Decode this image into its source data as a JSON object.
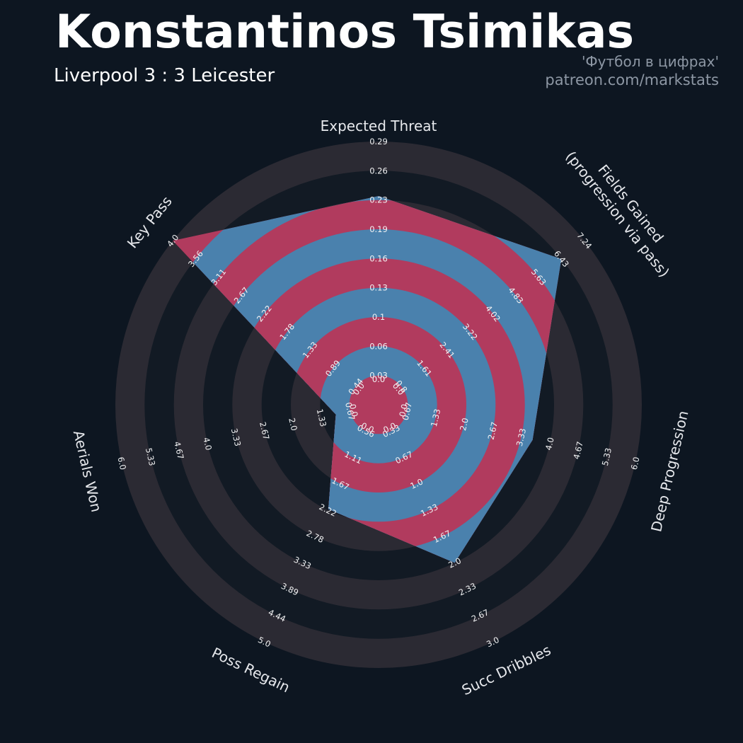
{
  "header": {
    "title": "Konstantinos Tsimikas",
    "subtitle": "Liverpool 3 : 3 Leicester",
    "credit_line1": "'Футбол в цифрах'",
    "credit_line2": "patreon.com/markstats"
  },
  "chart_data": {
    "type": "radar",
    "bands": 9,
    "legend_position": "none",
    "grid": "concentric-rings",
    "axes": [
      {
        "label": "Expected Threat",
        "value": 0.23,
        "max": 0.29,
        "tick_labels": [
          "0.0",
          "0.03",
          "0.06",
          "0.1",
          "0.13",
          "0.16",
          "0.19",
          "0.23",
          "0.26",
          "0.29"
        ]
      },
      {
        "label": "Fields Gained\n(progression via pass)",
        "value": 6.43,
        "max": 7.24,
        "tick_labels": [
          "0.0",
          "0.8",
          "1.61",
          "2.41",
          "3.22",
          "4.02",
          "4.83",
          "5.63",
          "6.43",
          "7.24"
        ]
      },
      {
        "label": "Deep Progression",
        "value": 3.6,
        "max": 6.0,
        "tick_labels": [
          "0.0",
          "0.67",
          "1.33",
          "2.0",
          "2.67",
          "3.33",
          "4.0",
          "4.67",
          "5.33",
          "6.0"
        ]
      },
      {
        "label": "Succ Dribbles",
        "value": 2.0,
        "max": 3.0,
        "tick_labels": [
          "0.0",
          "0.33",
          "0.67",
          "1.0",
          "1.33",
          "1.67",
          "2.0",
          "2.33",
          "2.67",
          "3.0"
        ]
      },
      {
        "label": "Poss Regain",
        "value": 2.2,
        "max": 5.0,
        "tick_labels": [
          "0.0",
          "0.56",
          "1.11",
          "1.67",
          "2.22",
          "2.78",
          "3.33",
          "3.89",
          "4.44",
          "5.0"
        ]
      },
      {
        "label": "Aerials Won",
        "value": 1.0,
        "max": 6.0,
        "tick_labels": [
          "0.0",
          "0.67",
          "1.33",
          "2.0",
          "2.67",
          "3.33",
          "4.0",
          "4.67",
          "5.33",
          "6.0"
        ]
      },
      {
        "label": "Key Pass",
        "value": 4.0,
        "max": 4.0,
        "tick_labels": [
          "0.0",
          "0.44",
          "0.89",
          "1.33",
          "1.78",
          "2.22",
          "2.67",
          "3.11",
          "3.56",
          "4.0"
        ]
      }
    ],
    "colors": {
      "background": "#0d1621",
      "ring_light": "#2b2a33",
      "ring_dark": "#121a24",
      "fill_red": "#b13b5e",
      "fill_blue": "#4a81ad",
      "tick_text": "#f2f3f4",
      "label_text": "#e6e8ec",
      "title_text": "#ffffff",
      "credit_text": "#8d97a4"
    }
  }
}
